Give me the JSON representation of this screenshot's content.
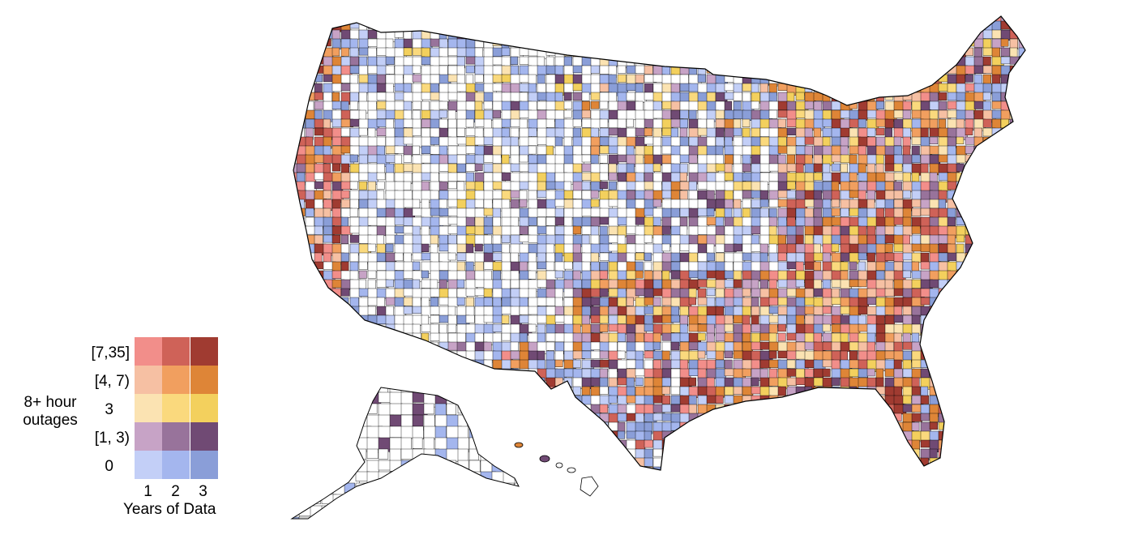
{
  "legend": {
    "row_title_line1": "8+ hour",
    "row_title_line2": "outages",
    "row_labels": [
      "[7,35]",
      "[4, 7)",
      "3",
      "[1, 3)",
      "0"
    ],
    "col_labels": [
      "1",
      "2",
      "3"
    ],
    "col_title": "Years of Data",
    "colors": [
      [
        "#f28e8a",
        "#cf6258",
        "#a03b31"
      ],
      [
        "#f6c0a3",
        "#f19f5f",
        "#de8537"
      ],
      [
        "#fbe3b2",
        "#fad97d",
        "#f3d05d"
      ],
      [
        "#c7a3c6",
        "#98739b",
        "#704a74"
      ],
      [
        "#c3cff7",
        "#a4b6ee",
        "#8a9ed8"
      ]
    ]
  },
  "map": {
    "regions": [
      "contiguous-us",
      "alaska",
      "hawaii"
    ],
    "fill_palette_none": "#ffffff",
    "outline_color": "#000000"
  }
}
